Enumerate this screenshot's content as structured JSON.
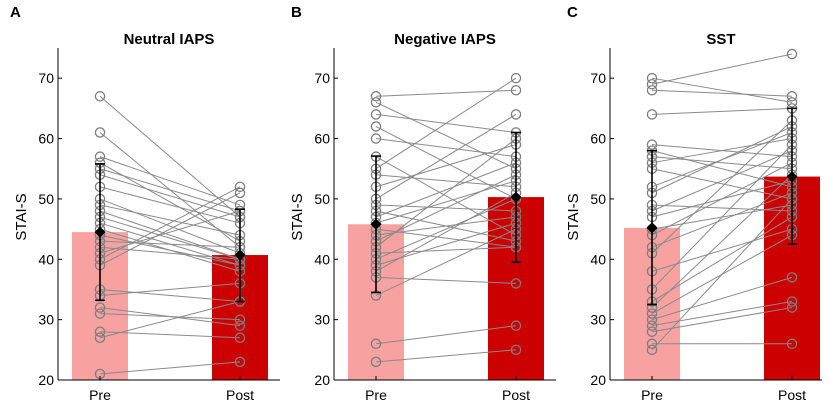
{
  "figure": {
    "panel_letters": [
      "A",
      "B",
      "C"
    ]
  },
  "chart_data": [
    {
      "type": "bar",
      "title": "Neutral IAPS",
      "xlabel": "",
      "ylabel": "STAI-S",
      "ylim": [
        20,
        75
      ],
      "yticks": [
        20,
        30,
        40,
        50,
        60,
        70
      ],
      "categories": [
        "Pre",
        "Post"
      ],
      "means": [
        44.5,
        40.7
      ],
      "error_low": [
        33.2,
        33.0
      ],
      "error_high": [
        55.8,
        48.3
      ],
      "bar_colors": [
        "#f7a1a1",
        "#cc0000"
      ],
      "pairs": [
        [
          67,
          47
        ],
        [
          61,
          42
        ],
        [
          57,
          49
        ],
        [
          56,
          43
        ],
        [
          55,
          48
        ],
        [
          54,
          47
        ],
        [
          52,
          46
        ],
        [
          50,
          41
        ],
        [
          49,
          44
        ],
        [
          48,
          40
        ],
        [
          47,
          40
        ],
        [
          46,
          39
        ],
        [
          45,
          38
        ],
        [
          44,
          39
        ],
        [
          43,
          42
        ],
        [
          42,
          40
        ],
        [
          41,
          48
        ],
        [
          40,
          52
        ],
        [
          39,
          51
        ],
        [
          35,
          33
        ],
        [
          34,
          36
        ],
        [
          32,
          29
        ],
        [
          31,
          30
        ],
        [
          28,
          27
        ],
        [
          27,
          33
        ],
        [
          21,
          23
        ]
      ]
    },
    {
      "type": "bar",
      "title": "Negative IAPS",
      "xlabel": "",
      "ylabel": "STAI-S",
      "ylim": [
        20,
        75
      ],
      "yticks": [
        20,
        30,
        40,
        50,
        60,
        70
      ],
      "categories": [
        "Pre",
        "Post"
      ],
      "means": [
        45.8,
        50.3
      ],
      "error_low": [
        34.5,
        39.5
      ],
      "error_high": [
        57.1,
        61.0
      ],
      "bar_colors": [
        "#f7a1a1",
        "#cc0000"
      ],
      "pairs": [
        [
          67,
          68
        ],
        [
          66,
          55
        ],
        [
          64,
          61
        ],
        [
          62,
          50
        ],
        [
          60,
          57
        ],
        [
          57,
          44
        ],
        [
          55,
          70
        ],
        [
          54,
          52
        ],
        [
          52,
          59
        ],
        [
          50,
          64
        ],
        [
          49,
          48
        ],
        [
          48,
          43
        ],
        [
          47,
          56
        ],
        [
          46,
          53
        ],
        [
          45,
          42
        ],
        [
          44,
          47
        ],
        [
          43,
          54
        ],
        [
          42,
          60
        ],
        [
          41,
          42
        ],
        [
          40,
          50
        ],
        [
          39,
          46
        ],
        [
          38,
          51
        ],
        [
          37,
          36
        ],
        [
          34,
          45
        ],
        [
          26,
          29
        ],
        [
          23,
          25
        ]
      ]
    },
    {
      "type": "bar",
      "title": "SST",
      "xlabel": "",
      "ylabel": "STAI-S",
      "ylim": [
        20,
        75
      ],
      "yticks": [
        20,
        30,
        40,
        50,
        60,
        70
      ],
      "categories": [
        "Pre",
        "Post"
      ],
      "means": [
        45.2,
        53.7
      ],
      "error_low": [
        32.5,
        42.5
      ],
      "error_high": [
        58.0,
        65.0
      ],
      "bar_colors": [
        "#f7a1a1",
        "#cc0000"
      ],
      "pairs": [
        [
          70,
          66
        ],
        [
          69,
          74
        ],
        [
          68,
          67
        ],
        [
          64,
          65
        ],
        [
          59,
          57
        ],
        [
          58,
          52
        ],
        [
          57,
          55
        ],
        [
          56,
          60
        ],
        [
          55,
          50
        ],
        [
          52,
          61
        ],
        [
          51,
          62
        ],
        [
          49,
          48
        ],
        [
          48,
          58
        ],
        [
          47,
          53
        ],
        [
          45,
          49
        ],
        [
          44,
          56
        ],
        [
          42,
          51
        ],
        [
          41,
          63
        ],
        [
          38,
          45
        ],
        [
          35,
          59
        ],
        [
          33,
          47
        ],
        [
          32,
          54
        ],
        [
          31,
          44
        ],
        [
          30,
          37
        ],
        [
          29,
          33
        ],
        [
          28,
          32
        ],
        [
          26,
          26
        ],
        [
          25,
          50
        ]
      ]
    }
  ]
}
